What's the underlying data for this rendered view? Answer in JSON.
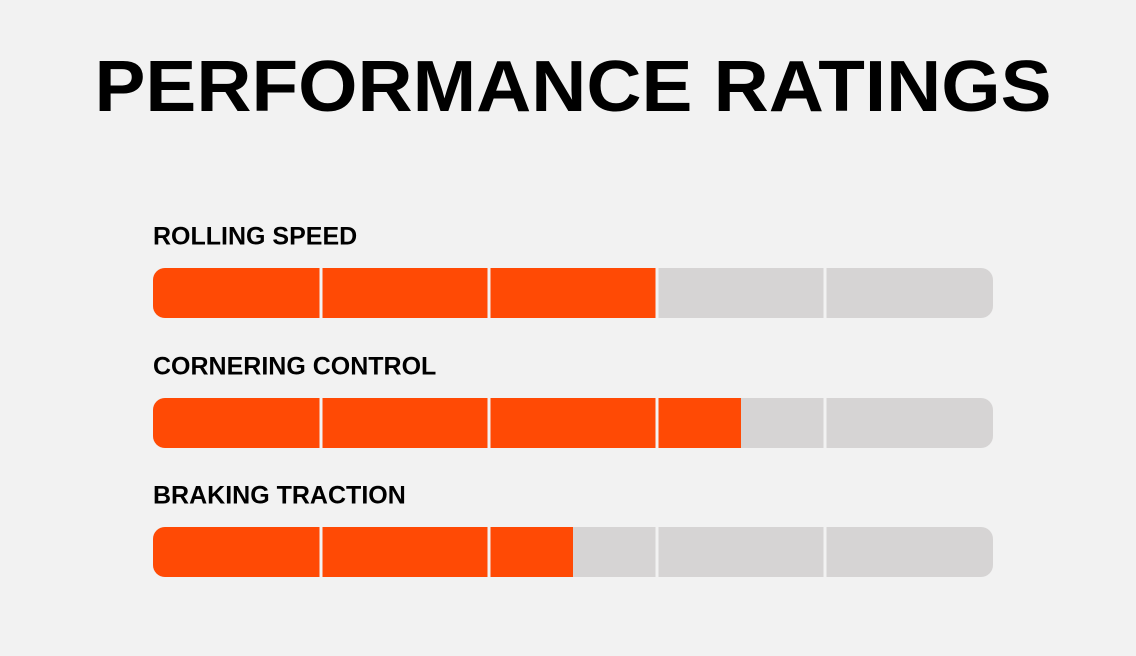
{
  "chart_data": {
    "type": "bar",
    "orientation": "horizontal",
    "title": "PERFORMANCE RATINGS",
    "categories": [
      "ROLLING SPEED",
      "CORNERING CONTROL",
      "BRAKING TRACTION"
    ],
    "values": [
      3,
      3.5,
      2.5
    ],
    "color": "#ff4a05",
    "track_color": "#d6d4d4",
    "xlim": [
      0,
      5
    ],
    "xticks": [
      1,
      2,
      3,
      4
    ],
    "grid": true
  }
}
